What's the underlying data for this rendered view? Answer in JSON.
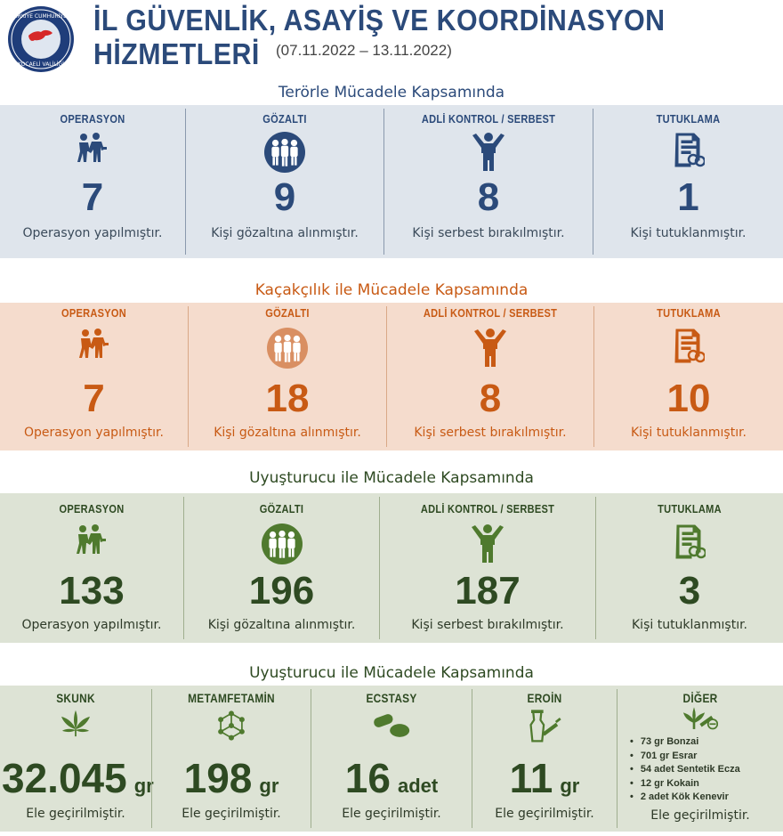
{
  "header": {
    "logo_text": "TÜRKİYE CUMHURİYETİ KOCAELİ VALİLİĞİ",
    "title": "İL GÜVENLİK, ASAYİŞ VE KOORDİNASYON HİZMETLERİ",
    "date_range": "(07.11.2022 – 13.11.2022)"
  },
  "colors": {
    "blue": "#2b4a7a",
    "orange": "#c85a14",
    "green": "#2e4a22",
    "blue_bg": "#dfe5ec",
    "orange_bg": "#f5dccd",
    "green_bg": "#dde3d5"
  },
  "terror": {
    "title": "Terörle Mücadele Kapsamında",
    "items": [
      {
        "label": "OPERASYON",
        "icon": "arrest-icon",
        "value": "7",
        "desc": "Operasyon yapılmıştır."
      },
      {
        "label": "GÖZALTI",
        "icon": "detainees-icon",
        "value": "9",
        "desc": "Kişi gözaltına alınmıştır."
      },
      {
        "label": "ADLİ KONTROL / SERBEST",
        "icon": "freed-person-icon",
        "value": "8",
        "desc": "Kişi serbest bırakılmıştır."
      },
      {
        "label": "TUTUKLAMA",
        "icon": "document-handcuffs-icon",
        "value": "1",
        "desc": "Kişi tutuklanmıştır."
      }
    ]
  },
  "smuggling": {
    "title": "Kaçakçılık ile Mücadele Kapsamında",
    "items": [
      {
        "label": "OPERASYON",
        "icon": "arrest-icon",
        "value": "7",
        "desc": "Operasyon yapılmıştır."
      },
      {
        "label": "GÖZALTI",
        "icon": "detainees-icon",
        "value": "18",
        "desc": "Kişi gözaltına alınmıştır."
      },
      {
        "label": "ADLİ KONTROL / SERBEST",
        "icon": "freed-person-icon",
        "value": "8",
        "desc": "Kişi serbest bırakılmıştır."
      },
      {
        "label": "TUTUKLAMA",
        "icon": "document-handcuffs-icon",
        "value": "10",
        "desc": "Kişi tutuklanmıştır."
      }
    ]
  },
  "narcotics": {
    "title": "Uyuşturucu ile Mücadele Kapsamında",
    "items": [
      {
        "label": "OPERASYON",
        "icon": "arrest-icon",
        "value": "133",
        "desc": "Operasyon yapılmıştır."
      },
      {
        "label": "GÖZALTI",
        "icon": "detainees-icon",
        "value": "196",
        "desc": "Kişi gözaltına alınmıştır."
      },
      {
        "label": "ADLİ KONTROL / SERBEST",
        "icon": "freed-person-icon",
        "value": "187",
        "desc": "Kişi serbest bırakılmıştır."
      },
      {
        "label": "TUTUKLAMA",
        "icon": "document-handcuffs-icon",
        "value": "3",
        "desc": "Kişi tutuklanmıştır."
      }
    ]
  },
  "seizures": {
    "title": "Uyuşturucu ile  Mücadele Kapsamında",
    "items": [
      {
        "label": "SKUNK",
        "icon": "cannabis-leaf-icon",
        "value": "32.045",
        "unit": "gr",
        "desc": "Ele geçirilmiştir."
      },
      {
        "label": "METAMFETAMİN",
        "icon": "molecule-icon",
        "value": "198",
        "unit": "gr",
        "desc": "Ele geçirilmiştir."
      },
      {
        "label": "ECSTASY",
        "icon": "pills-icon",
        "value": "16",
        "unit": "adet",
        "desc": "Ele geçirilmiştir."
      },
      {
        "label": "EROİN",
        "icon": "heroin-syringe-icon",
        "value": "11",
        "unit": "gr",
        "desc": "Ele geçirilmiştir."
      }
    ],
    "other": {
      "label": "DİĞER",
      "icon": "leaf-syringe-icon",
      "list": [
        "73 gr Bonzai",
        "701 gr Esrar",
        "54 adet Sentetik Ecza",
        "12 gr Kokain",
        "2 adet Kök Kenevir"
      ],
      "desc": "Ele geçirilmiştir."
    }
  }
}
